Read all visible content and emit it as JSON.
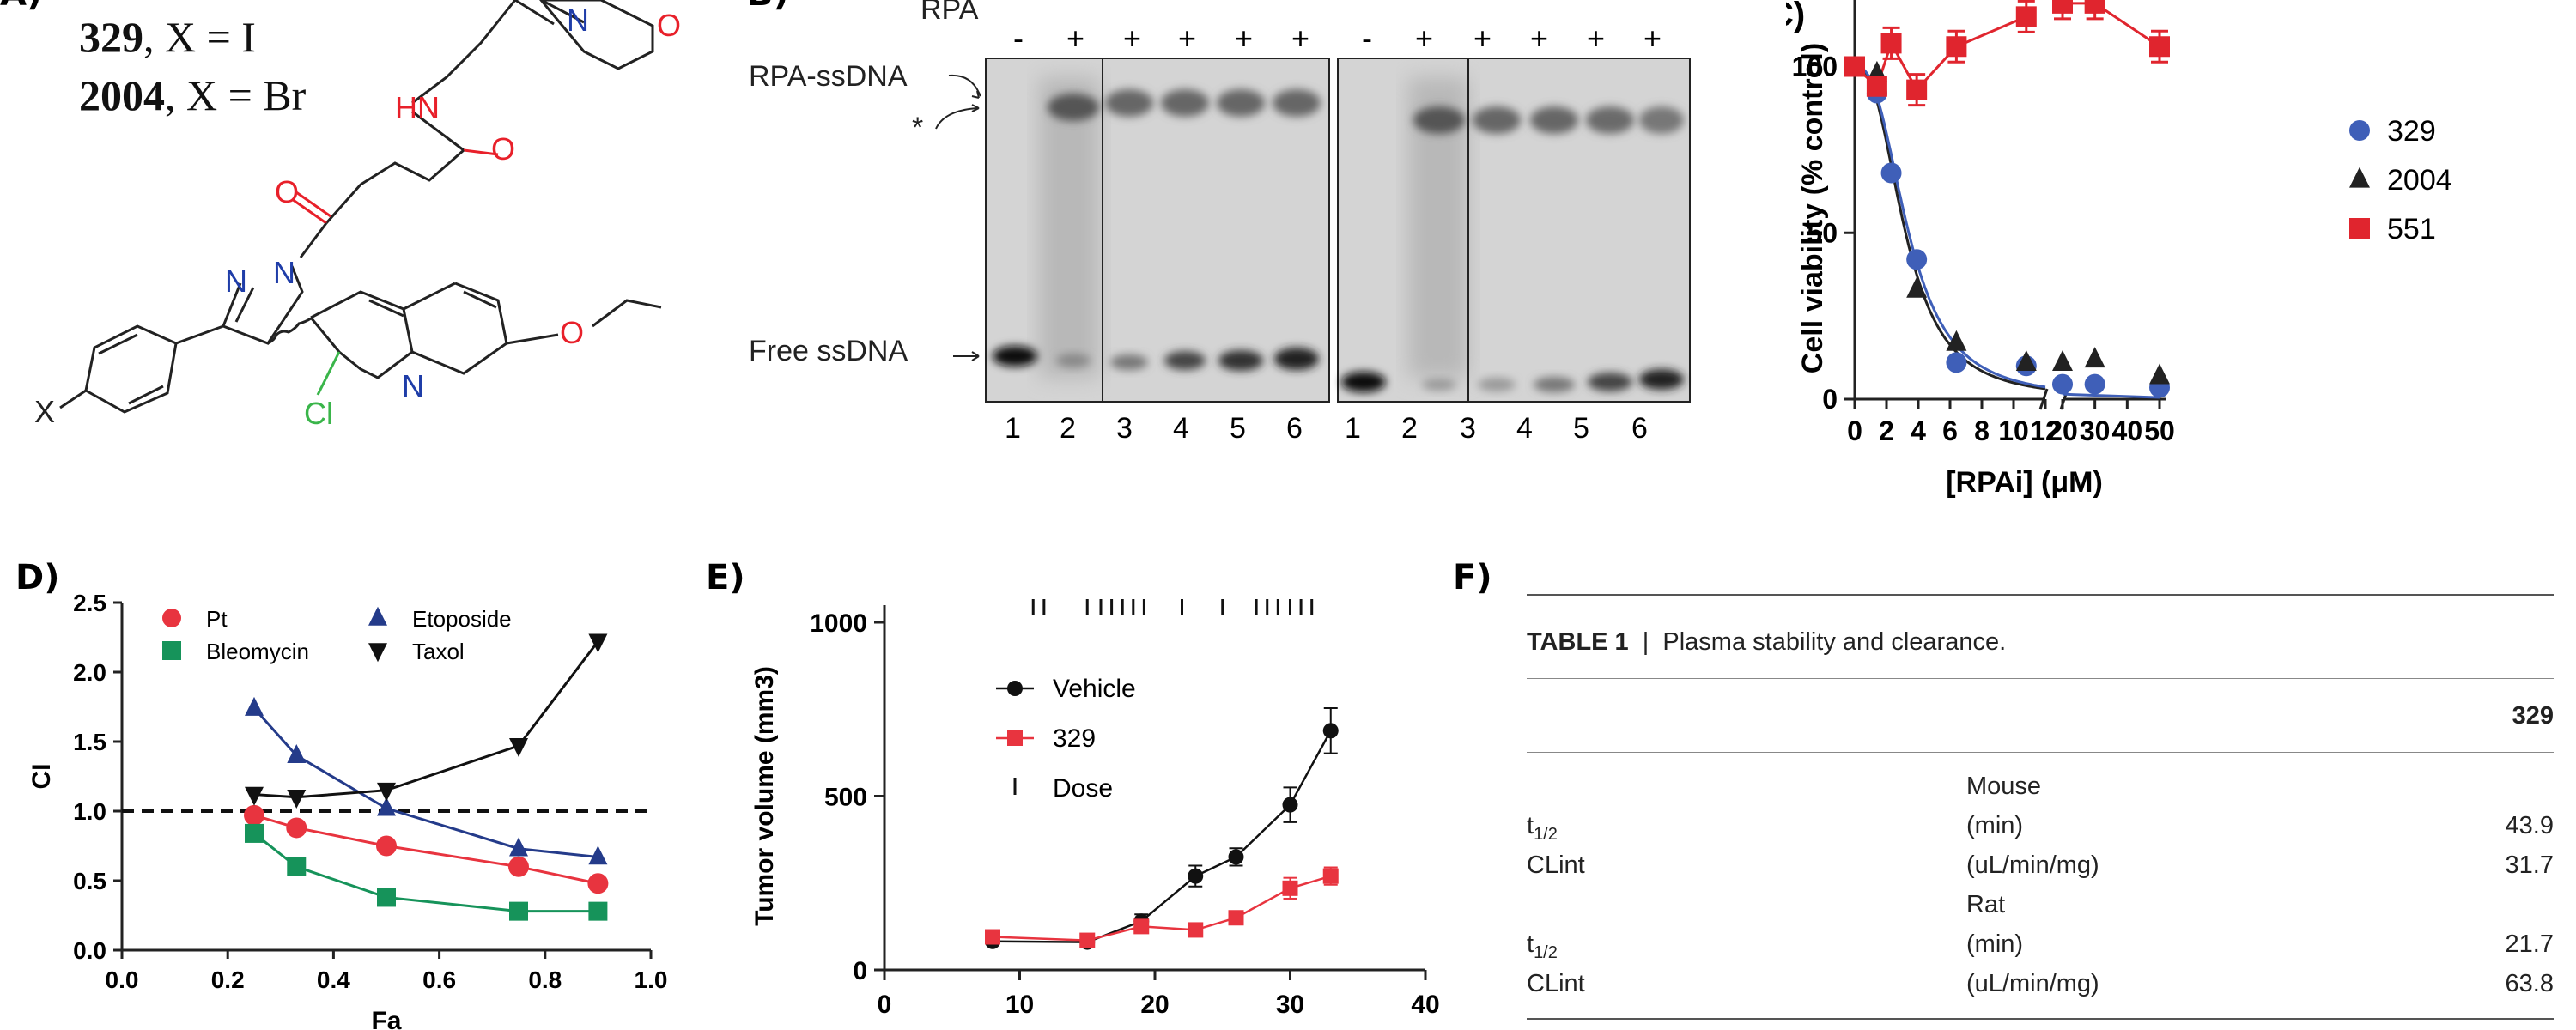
{
  "panel_a": {
    "label": "A)",
    "compounds": [
      {
        "id": "329",
        "x_label": "X = I"
      },
      {
        "id": "2004",
        "x_label": "X = Br"
      }
    ],
    "atoms": {
      "n_morph": "N",
      "o_morph": "O",
      "hn": "HN",
      "o_amide": "O",
      "o_ketone": "O",
      "n1": "N",
      "n2": "N",
      "x": "X",
      "cl": "Cl",
      "n_quin": "N",
      "o_ether": "O"
    },
    "colors": {
      "red": "#e8202a",
      "blue": "#1f3da8",
      "green": "#3ab54a"
    }
  },
  "panel_b": {
    "label": "B)",
    "row_label": "RPA",
    "signs": [
      "-",
      "+",
      "+",
      "+",
      "+",
      "+"
    ],
    "lanes": [
      "1",
      "2",
      "3",
      "4",
      "5",
      "6"
    ],
    "band_labels": {
      "complex": "RPA-ssDNA",
      "star": "*",
      "free": "Free ssDNA"
    }
  },
  "chart_data": [
    {
      "id": "C",
      "type": "scatter",
      "title": "",
      "xlabel": "[RPAi] (μM)",
      "ylabel": "Cell viability (% control)",
      "xticks": [
        "0",
        "2",
        "4",
        "6",
        "8",
        "10",
        "12",
        "20",
        "30",
        "40",
        "50"
      ],
      "yticks": [
        "0",
        "50",
        "100"
      ],
      "ylim": [
        0,
        120
      ],
      "x_break": [
        12,
        20
      ],
      "legend": [
        "329",
        "2004",
        "551"
      ],
      "series": [
        {
          "name": "329",
          "color": "#3f5fb8",
          "marker": "circle",
          "points": [
            [
              0,
              100
            ],
            [
              1.4,
              92
            ],
            [
              2.3,
              68
            ],
            [
              3.9,
              42
            ],
            [
              6.4,
              11
            ],
            [
              10.8,
              10
            ],
            [
              20,
              4.5
            ],
            [
              30,
              4.5
            ],
            [
              50,
              3.5
            ]
          ]
        },
        {
          "name": "2004",
          "color": "#222222",
          "marker": "triangle",
          "points": [
            [
              0,
              100
            ],
            [
              1.4,
              98
            ],
            [
              3.9,
              33
            ],
            [
              6.4,
              17
            ],
            [
              10.8,
              11
            ],
            [
              20,
              11
            ],
            [
              30,
              12
            ],
            [
              50,
              7
            ]
          ]
        },
        {
          "name": "551",
          "color": "#e0252e",
          "marker": "square",
          "points": [
            [
              0,
              100
            ],
            [
              1.4,
              94
            ],
            [
              2.3,
              107
            ],
            [
              3.9,
              93
            ],
            [
              6.4,
              106
            ],
            [
              10.8,
              115
            ],
            [
              20,
              119
            ],
            [
              30,
              119
            ],
            [
              50,
              106
            ]
          ]
        }
      ]
    },
    {
      "id": "D",
      "type": "line",
      "xlabel": "Fa",
      "ylabel": "CI",
      "xlim": [
        0,
        1.0
      ],
      "ylim": [
        0,
        2.5
      ],
      "xticks": [
        "0.0",
        "0.2",
        "0.4",
        "0.6",
        "0.8",
        "1.0"
      ],
      "yticks": [
        "0.0",
        "0.5",
        "1.0",
        "1.5",
        "2.0",
        "2.5"
      ],
      "reference_line": 1.0,
      "series": [
        {
          "name": "Pt",
          "color": "#e8343f",
          "marker": "circle",
          "points": [
            [
              0.25,
              0.97
            ],
            [
              0.33,
              0.88
            ],
            [
              0.5,
              0.75
            ],
            [
              0.75,
              0.6
            ],
            [
              0.9,
              0.48
            ]
          ]
        },
        {
          "name": "Bleomycin",
          "color": "#16935a",
          "marker": "square",
          "points": [
            [
              0.25,
              0.84
            ],
            [
              0.33,
              0.6
            ],
            [
              0.5,
              0.38
            ],
            [
              0.75,
              0.28
            ],
            [
              0.9,
              0.28
            ]
          ]
        },
        {
          "name": "Etoposide",
          "color": "#243b8a",
          "marker": "triangle",
          "points": [
            [
              0.25,
              1.74
            ],
            [
              0.33,
              1.4
            ],
            [
              0.5,
              1.02
            ],
            [
              0.75,
              0.73
            ],
            [
              0.9,
              0.67
            ]
          ]
        },
        {
          "name": "Taxol",
          "color": "#111111",
          "marker": "triangle-down",
          "points": [
            [
              0.25,
              1.12
            ],
            [
              0.33,
              1.1
            ],
            [
              0.5,
              1.15
            ],
            [
              0.75,
              1.47
            ],
            [
              0.9,
              2.22
            ]
          ]
        }
      ]
    },
    {
      "id": "E",
      "type": "line",
      "xlabel": "",
      "ylabel": "Tumor volume (mm3)",
      "xlim": [
        0,
        40
      ],
      "ylim": [
        0,
        1000
      ],
      "xticks": [
        "0",
        "10",
        "20",
        "30",
        "40"
      ],
      "yticks": [
        "0",
        "500",
        "1000"
      ],
      "dose_days": [
        11,
        11.8,
        15,
        16,
        16.8,
        17.6,
        18.4,
        19.2,
        22,
        25,
        27.5,
        28.3,
        29.1,
        30,
        30.8,
        31.6
      ],
      "series": [
        {
          "name": "Vehicle",
          "color": "#111111",
          "marker": "circle",
          "points": [
            [
              8,
              82
            ],
            [
              15,
              80
            ],
            [
              19,
              140
            ],
            [
              23,
              270
            ],
            [
              26,
              325
            ],
            [
              30,
              475
            ],
            [
              33,
              688
            ]
          ],
          "errors": [
            0,
            0,
            20,
            30,
            25,
            50,
            65
          ]
        },
        {
          "name": "329",
          "color": "#e8343f",
          "marker": "square",
          "points": [
            [
              8,
              95
            ],
            [
              15,
              85
            ],
            [
              19,
              125
            ],
            [
              23,
              115
            ],
            [
              26,
              150
            ],
            [
              30,
              235
            ],
            [
              33,
              270
            ]
          ],
          "errors": [
            0,
            0,
            10,
            10,
            10,
            30,
            25
          ]
        },
        {
          "name": "Dose",
          "color": "#111111",
          "marker": "tick",
          "points": []
        }
      ]
    }
  ],
  "panel_labels": {
    "d": "D)",
    "e": "E)",
    "f": "F)"
  },
  "table": {
    "caption_bold": "TABLE 1",
    "caption_sep": "|",
    "caption_text": "Plasma stability and clearance.",
    "col_header": "329",
    "sections": [
      {
        "species": "Mouse",
        "rows": [
          {
            "param": "t",
            "param_sub": "1/2",
            "unit": "(min)",
            "value": "43.9"
          },
          {
            "param": "CLint",
            "param_sub": "",
            "unit": "(uL/min/mg)",
            "value": "31.7"
          }
        ]
      },
      {
        "species": "Rat",
        "rows": [
          {
            "param": "t",
            "param_sub": "1/2",
            "unit": "(min)",
            "value": "21.7"
          },
          {
            "param": "CLint",
            "param_sub": "",
            "unit": "(uL/min/mg)",
            "value": "63.8"
          }
        ]
      }
    ]
  }
}
